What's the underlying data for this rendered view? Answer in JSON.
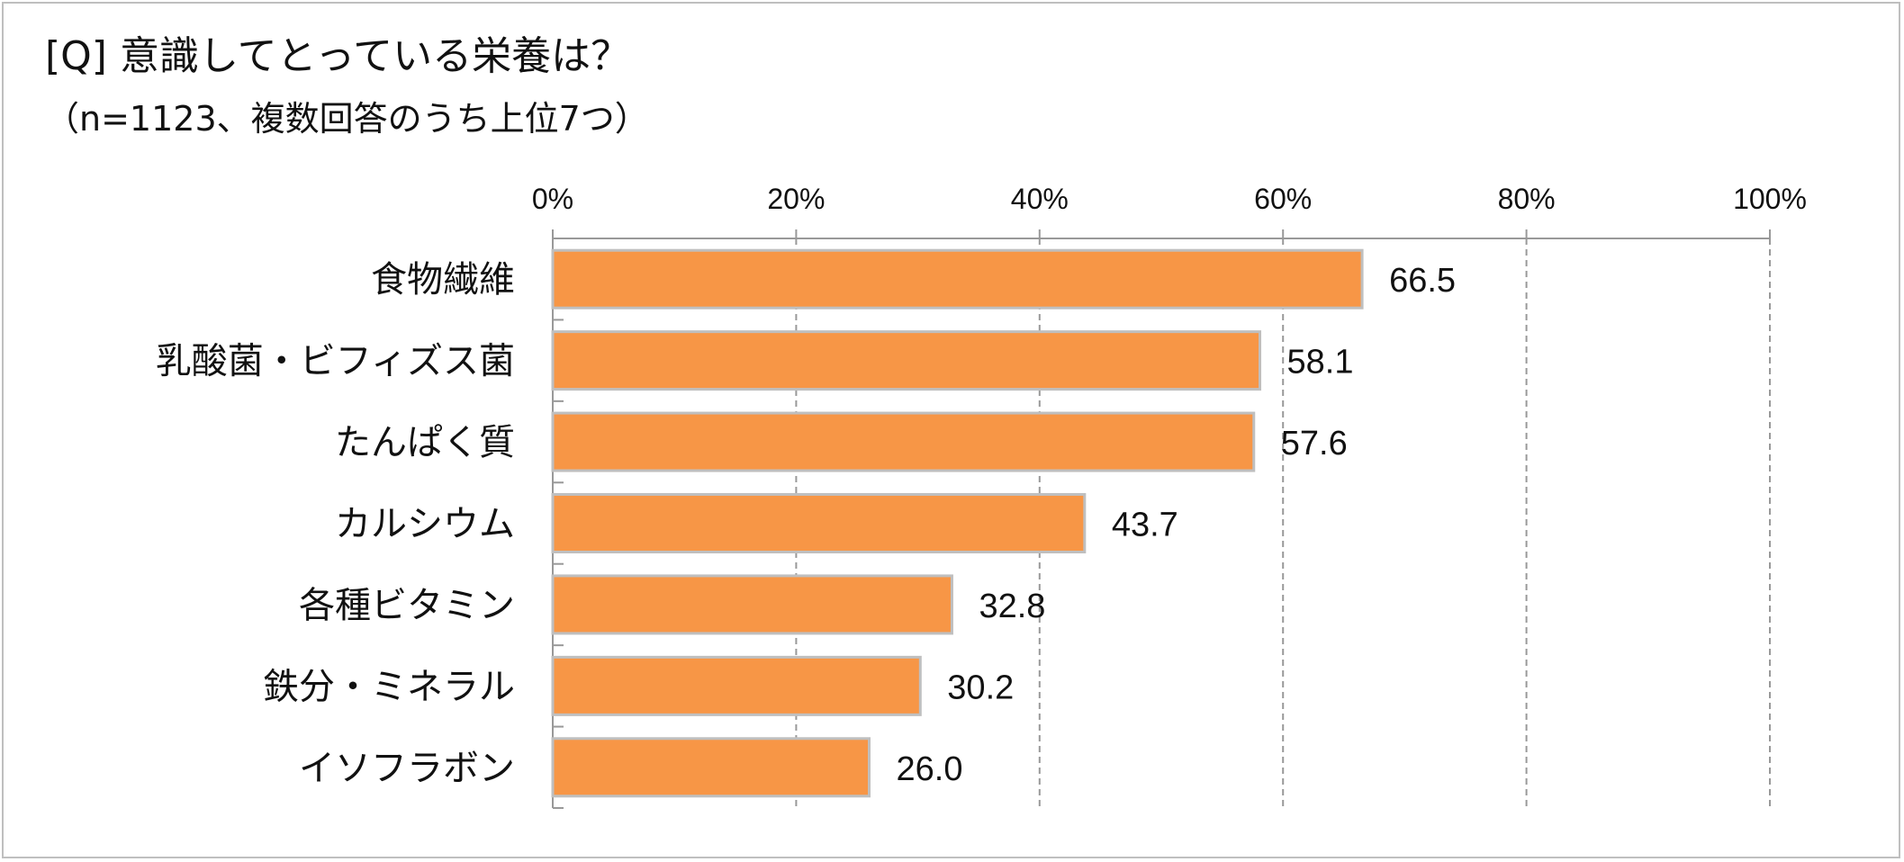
{
  "chart_data": {
    "type": "bar",
    "orientation": "horizontal",
    "title": "[Q] 意識してとっている栄養は？",
    "subtitle": "（n=1123、複数回答のうち上位7つ）",
    "categories": [
      "食物繊維",
      "乳酸菌・ビフィズス菌",
      "たんぱく質",
      "カルシウム",
      "各種ビタミン",
      "鉄分・ミネラル",
      "イソフラボン"
    ],
    "values": [
      66.5,
      58.1,
      57.6,
      43.7,
      32.8,
      30.2,
      26.0
    ],
    "value_labels": [
      "66.5",
      "58.1",
      "57.6",
      "43.7",
      "32.8",
      "30.2",
      "26.0"
    ],
    "x_ticks": [
      "0%",
      "20%",
      "40%",
      "60%",
      "80%",
      "100%"
    ],
    "xlim": [
      0,
      100
    ],
    "xlabel": "",
    "ylabel": "",
    "grid": true,
    "legend": "none",
    "bar_color": "#F79646",
    "bar_border_color": "#BFBFBF",
    "grid_color": "#999999"
  }
}
